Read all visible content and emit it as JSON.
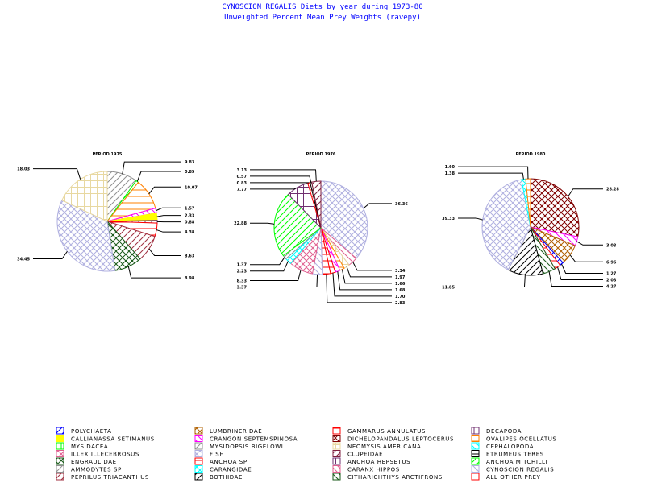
{
  "title": "CYNOSCION REGALIS Diets by year during 1973-80",
  "subtitle": "Unweighted Percent Mean Prey Weights (ravepy)",
  "species": {
    "POLYCHAETA": {
      "color": "#0000ff",
      "pattern": "diag"
    },
    "CALLIANASSA SETIMANUS": {
      "color": "#ffff00",
      "pattern": "solid"
    },
    "MYSIDACEA": {
      "color": "#00ff00",
      "pattern": "vert"
    },
    "ILLEX ILLECEBROSUS": {
      "color": "#e06090",
      "pattern": "cross"
    },
    "ENGRAULIDAE": {
      "color": "#1a5a1a",
      "pattern": "xcross"
    },
    "AMMODYTES SP": {
      "color": "#909090",
      "pattern": "diag"
    },
    "PEPRILUS TRIACANTHUS": {
      "color": "#a03040",
      "pattern": "diag"
    },
    "LUMBRINERIDAE": {
      "color": "#b06000",
      "pattern": "cross"
    },
    "CRANGON SEPTEMSPINOSA": {
      "color": "#ff00ff",
      "pattern": "back"
    },
    "MYSIDOPSIS BIGELOWI": {
      "color": "#909090",
      "pattern": "diag"
    },
    "FISH": {
      "color": "#b0b0e0",
      "pattern": "cross"
    },
    "ANCHOA SP": {
      "color": "#ff0000",
      "pattern": "horiz"
    },
    "CARANGIDAE": {
      "color": "#00ffff",
      "pattern": "cross"
    },
    "BOTHIDAE": {
      "color": "#000000",
      "pattern": "diag"
    },
    "GAMMARUS ANNULATUS": {
      "color": "#ff0000",
      "pattern": "horiz"
    },
    "DICHELOPANDALUS LEPTOCERUS": {
      "color": "#800000",
      "pattern": "xcross"
    },
    "NEOMYSIS AMERICANA": {
      "color": "#e8d8a0",
      "pattern": "grid"
    },
    "CLUPEIDAE": {
      "color": "#802040",
      "pattern": "diag"
    },
    "ANCHOA HEPSETUS": {
      "color": "#703070",
      "pattern": "grid"
    },
    "CARANX HIPPOS": {
      "color": "#e06090",
      "pattern": "back"
    },
    "CITHARICHTHYS ARCTIFRONS": {
      "color": "#1a5a1a",
      "pattern": "back"
    },
    "DECAPODA": {
      "color": "#703070",
      "pattern": "vert"
    },
    "OVALIPES OCELLATUS": {
      "color": "#ff8000",
      "pattern": "horiz"
    },
    "CEPHALOPODA": {
      "color": "#00ffff",
      "pattern": "back"
    },
    "ETRUMEUS TERES": {
      "color": "#000000",
      "pattern": "horiz"
    },
    "ANCHOA MITCHILLI": {
      "color": "#00ff00",
      "pattern": "diag"
    },
    "CYNOSCION REGALIS": {
      "color": "#b0b0e0",
      "pattern": "back"
    },
    "ALL OTHER PREY": {
      "color": "#ff0000",
      "pattern": "horiz"
    }
  },
  "legend": [
    "POLYCHAETA",
    "CALLIANASSA SETIMANUS",
    "MYSIDACEA",
    "ILLEX ILLECEBROSUS",
    "ENGRAULIDAE",
    "AMMODYTES SP",
    "PEPRILUS TRIACANTHUS",
    "LUMBRINERIDAE",
    "CRANGON SEPTEMSPINOSA",
    "MYSIDOPSIS BIGELOWI",
    "FISH",
    "ANCHOA SP",
    "CARANGIDAE",
    "BOTHIDAE",
    "GAMMARUS ANNULATUS",
    "DICHELOPANDALUS LEPTOCERUS",
    "NEOMYSIS AMERICANA",
    "CLUPEIDAE",
    "ANCHOA HEPSETUS",
    "CARANX HIPPOS",
    "CITHARICHTHYS ARCTIFRONS",
    "DECAPODA",
    "OVALIPES OCELLATUS",
    "CEPHALOPODA",
    "ETRUMEUS TERES",
    "ANCHOA MITCHILLI",
    "CYNOSCION REGALIS",
    "ALL OTHER PREY"
  ],
  "chart_data": [
    {
      "type": "pie",
      "title": "PERIOD 1975",
      "slices": [
        {
          "name": "MYSIDOPSIS BIGELOWI",
          "value": 9.83,
          "label": "9.83"
        },
        {
          "name": "ANCHOA MITCHILLI",
          "value": 0.85,
          "label": "0.85"
        },
        {
          "name": "OVALIPES OCELLATUS",
          "value": 10.07,
          "label": "10.07"
        },
        {
          "name": "CRANGON SEPTEMSPINOSA",
          "value": 1.57,
          "label": "1.57"
        },
        {
          "name": "CALLIANASSA SETIMANUS",
          "value": 2.33,
          "label": "2.33"
        },
        {
          "name": "DECAPODA",
          "value": 0.88,
          "label": "0.88"
        },
        {
          "name": "ALL OTHER PREY",
          "value": 4.38,
          "label": "4.38"
        },
        {
          "name": "PEPRILUS TRIACANTHUS",
          "value": 8.63,
          "label": "8.63"
        },
        {
          "name": "ENGRAULIDAE",
          "value": 8.98,
          "label": "8.98"
        },
        {
          "name": "FISH",
          "value": 34.45,
          "label": "34.45"
        },
        {
          "name": "NEOMYSIS AMERICANA",
          "value": 18.03,
          "label": "18.03"
        }
      ]
    },
    {
      "type": "pie",
      "title": "PERIOD 1976",
      "slices": [
        {
          "name": "FISH",
          "value": 36.36,
          "label": "36.36"
        },
        {
          "name": "CARANX HIPPOS",
          "value": 3.34,
          "label": "3.34"
        },
        {
          "name": "NEOMYSIS AMERICANA",
          "value": 1.97,
          "label": "1.97"
        },
        {
          "name": "OVALIPES OCELLATUS",
          "value": 1.66,
          "label": "1.66"
        },
        {
          "name": "CRANGON SEPTEMSPINOSA",
          "value": 1.68,
          "label": "1.68"
        },
        {
          "name": "GAMMARUS ANNULATUS",
          "value": 1.7,
          "label": "1.70"
        },
        {
          "name": "ALL OTHER PREY",
          "value": 2.83,
          "label": "2.83"
        },
        {
          "name": "CYNOSCION REGALIS",
          "value": 3.37,
          "label": "3.37"
        },
        {
          "name": "ILLEX ILLECEBROSUS",
          "value": 8.33,
          "label": "8.33"
        },
        {
          "name": "CARANGIDAE",
          "value": 2.23,
          "label": "2.23"
        },
        {
          "name": "AMMODYTES SP",
          "value": 1.37,
          "label": "1.37"
        },
        {
          "name": "ANCHOA MITCHILLI",
          "value": 22.88,
          "label": "22.88"
        },
        {
          "name": "ANCHOA HEPSETUS",
          "value": 7.77,
          "label": "7.77"
        },
        {
          "name": "ANCHOA SP",
          "value": 0.83,
          "label": "0.83"
        },
        {
          "name": "ETRUMEUS TERES",
          "value": 0.57,
          "label": "0.57"
        },
        {
          "name": "CLUPEIDAE",
          "value": 3.13,
          "label": "3.13"
        }
      ]
    },
    {
      "type": "pie",
      "title": "PERIOD 1980",
      "slices": [
        {
          "name": "DICHELOPANDALUS LEPTOCERUS",
          "value": 28.28,
          "label": "28.28"
        },
        {
          "name": "CRANGON SEPTEMSPINOSA",
          "value": 3.03,
          "label": "3.03"
        },
        {
          "name": "LUMBRINERIDAE",
          "value": 6.96,
          "label": "6.96"
        },
        {
          "name": "POLYCHAETA",
          "value": 1.27,
          "label": "1.27"
        },
        {
          "name": "ALL OTHER PREY",
          "value": 2.03,
          "label": "2.03"
        },
        {
          "name": "CITHARICHTHYS ARCTIFRONS",
          "value": 4.27,
          "label": "4.27"
        },
        {
          "name": "BOTHIDAE",
          "value": 11.85,
          "label": "11.85"
        },
        {
          "name": "FISH",
          "value": 39.33,
          "label": "39.33"
        },
        {
          "name": "CARANGIDAE",
          "value": 1.38,
          "label": "1.38"
        },
        {
          "name": "OVALIPES OCELLATUS",
          "value": 1.6,
          "label": "1.60"
        }
      ]
    }
  ]
}
